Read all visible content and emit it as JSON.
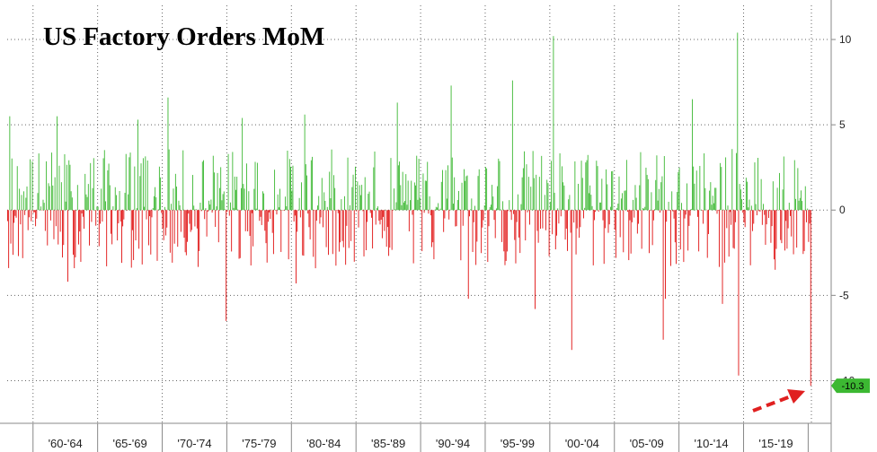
{
  "chart_data": {
    "type": "bar",
    "title": "US Factory Orders MoM",
    "xlabel": "",
    "ylabel": "",
    "ylim": [
      -12.5,
      12
    ],
    "yticks": [
      10,
      5,
      0,
      -5,
      -10
    ],
    "xtick_labels": [
      "'60-'64",
      "'65-'69",
      "'70-'74",
      "'75-'79",
      "'80-'84",
      "'85-'89",
      "'90-'94",
      "'95-'99",
      "'00-'04",
      "'05-'09",
      "'10-'14",
      "'15-'19"
    ],
    "grid": true,
    "positive_color": "#3cb832",
    "negative_color": "#e01010",
    "last_value_label": "-10.3",
    "last_value": -10.3,
    "start_year": 1958,
    "end_year": 2020,
    "months_per_period": 1,
    "notable_values": [
      {
        "date": "1958-03",
        "value": 5.5
      },
      {
        "date": "1961-11",
        "value": 5.5
      },
      {
        "date": "1962-09",
        "value": -4.2
      },
      {
        "date": "1968-02",
        "value": 5.3
      },
      {
        "date": "1970-06",
        "value": 6.6
      },
      {
        "date": "1974-12",
        "value": -6.5
      },
      {
        "date": "1976-03",
        "value": 5.4
      },
      {
        "date": "1980-05",
        "value": -4.3
      },
      {
        "date": "1981-01",
        "value": 5.6
      },
      {
        "date": "1988-03",
        "value": 6.3
      },
      {
        "date": "1992-05",
        "value": 7.3
      },
      {
        "date": "1993-09",
        "value": -5.2
      },
      {
        "date": "1997-02",
        "value": 7.6
      },
      {
        "date": "1998-11",
        "value": -5.8
      },
      {
        "date": "2000-04",
        "value": 10.2
      },
      {
        "date": "2001-09",
        "value": -8.2
      },
      {
        "date": "2008-10",
        "value": -7.6
      },
      {
        "date": "2008-12",
        "value": -5.2
      },
      {
        "date": "2011-01",
        "value": 6.5
      },
      {
        "date": "2013-05",
        "value": -5.5
      },
      {
        "date": "2014-07",
        "value": 10.4
      },
      {
        "date": "2014-08",
        "value": -9.7
      },
      {
        "date": "2017-06",
        "value": -3.5
      },
      {
        "date": "2020-03",
        "value": -10.3
      }
    ]
  }
}
